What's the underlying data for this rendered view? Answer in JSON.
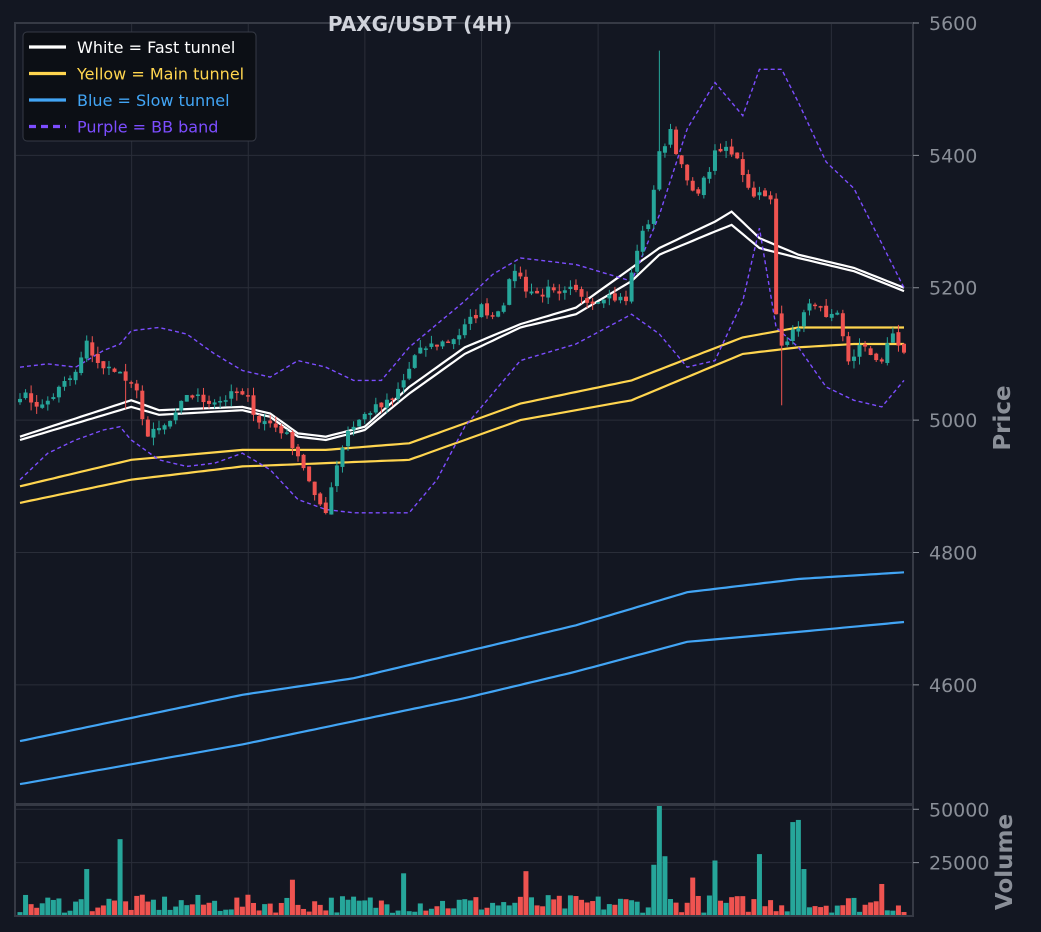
{
  "chart_data": [
    {
      "type": "candlestick",
      "title": "PAXG/USDT (4H)",
      "ylabel": "Price",
      "ylim": [
        4420,
        5600
      ],
      "yticks": [
        "4600",
        "4800",
        "5000",
        "5200",
        "5400",
        "5600"
      ],
      "grid": true,
      "legend_position": "top-left",
      "legend": [
        {
          "label": "White = Fast tunnel",
          "color": "#ffffff",
          "style": "solid"
        },
        {
          "label": "Yellow = Main tunnel",
          "color": "#ffd54f",
          "style": "solid"
        },
        {
          "label": "Blue = Slow tunnel",
          "color": "#42a5f5",
          "style": "solid"
        },
        {
          "label": "Purple = BB band",
          "color": "#7c4dff",
          "style": "dashed"
        }
      ],
      "candle_colors": {
        "up": "#26a69a",
        "down": "#ef5350"
      },
      "close_anchors": [
        [
          0,
          5040
        ],
        [
          4,
          5020
        ],
        [
          8,
          5055
        ],
        [
          10,
          5070
        ],
        [
          12,
          5115
        ],
        [
          15,
          5075
        ],
        [
          17,
          5080
        ],
        [
          19,
          5060
        ],
        [
          21,
          5040
        ],
        [
          23,
          4975
        ],
        [
          26,
          4990
        ],
        [
          28,
          5005
        ],
        [
          30,
          5040
        ],
        [
          33,
          5030
        ],
        [
          36,
          5030
        ],
        [
          39,
          5040
        ],
        [
          41,
          5030
        ],
        [
          43,
          5000
        ],
        [
          45,
          4995
        ],
        [
          47,
          4985
        ],
        [
          49,
          4965
        ],
        [
          51,
          4930
        ],
        [
          53,
          4880
        ],
        [
          55,
          4865
        ],
        [
          57,
          4935
        ],
        [
          59,
          4985
        ],
        [
          61,
          5000
        ],
        [
          63,
          5015
        ],
        [
          65,
          5020
        ],
        [
          67,
          5030
        ],
        [
          69,
          5060
        ],
        [
          71,
          5095
        ],
        [
          73,
          5110
        ],
        [
          75,
          5115
        ],
        [
          77,
          5120
        ],
        [
          79,
          5130
        ],
        [
          81,
          5150
        ],
        [
          83,
          5170
        ],
        [
          85,
          5160
        ],
        [
          87,
          5180
        ],
        [
          89,
          5230
        ],
        [
          91,
          5200
        ],
        [
          93,
          5190
        ],
        [
          95,
          5195
        ],
        [
          97,
          5185
        ],
        [
          99,
          5195
        ],
        [
          101,
          5190
        ],
        [
          103,
          5180
        ],
        [
          105,
          5190
        ],
        [
          107,
          5185
        ],
        [
          109,
          5180
        ],
        [
          111,
          5260
        ],
        [
          113,
          5300
        ],
        [
          115,
          5400
        ],
        [
          117,
          5440
        ],
        [
          119,
          5380
        ],
        [
          121,
          5340
        ],
        [
          123,
          5360
        ],
        [
          125,
          5400
        ],
        [
          127,
          5410
        ],
        [
          129,
          5400
        ],
        [
          131,
          5350
        ],
        [
          133,
          5340
        ],
        [
          135,
          5330
        ],
        [
          136,
          5160
        ],
        [
          137,
          5120
        ],
        [
          139,
          5130
        ],
        [
          141,
          5160
        ],
        [
          143,
          5180
        ],
        [
          145,
          5150
        ],
        [
          147,
          5155
        ],
        [
          149,
          5090
        ],
        [
          151,
          5110
        ],
        [
          153,
          5100
        ],
        [
          155,
          5090
        ],
        [
          157,
          5130
        ],
        [
          159,
          5100
        ]
      ],
      "series": [
        {
          "name": "Fast tunnel upper",
          "color": "#ffffff",
          "points": [
            [
              0,
              4975
            ],
            [
              20,
              5030
            ],
            [
              25,
              5015
            ],
            [
              40,
              5020
            ],
            [
              45,
              5010
            ],
            [
              50,
              4980
            ],
            [
              55,
              4975
            ],
            [
              62,
              4990
            ],
            [
              70,
              5050
            ],
            [
              80,
              5110
            ],
            [
              90,
              5145
            ],
            [
              100,
              5170
            ],
            [
              110,
              5230
            ],
            [
              115,
              5260
            ],
            [
              125,
              5300
            ],
            [
              128,
              5315
            ],
            [
              133,
              5275
            ],
            [
              140,
              5250
            ],
            [
              150,
              5230
            ],
            [
              159,
              5200
            ]
          ]
        },
        {
          "name": "Fast tunnel lower",
          "color": "#ffffff",
          "points": [
            [
              0,
              4970
            ],
            [
              20,
              5020
            ],
            [
              25,
              5008
            ],
            [
              40,
              5015
            ],
            [
              45,
              5005
            ],
            [
              50,
              4975
            ],
            [
              55,
              4970
            ],
            [
              62,
              4985
            ],
            [
              70,
              5040
            ],
            [
              80,
              5100
            ],
            [
              90,
              5140
            ],
            [
              100,
              5160
            ],
            [
              110,
              5210
            ],
            [
              115,
              5250
            ],
            [
              125,
              5285
            ],
            [
              128,
              5295
            ],
            [
              133,
              5260
            ],
            [
              140,
              5245
            ],
            [
              150,
              5225
            ],
            [
              159,
              5195
            ]
          ]
        },
        {
          "name": "Main tunnel upper",
          "color": "#ffd54f",
          "points": [
            [
              0,
              4900
            ],
            [
              20,
              4940
            ],
            [
              40,
              4955
            ],
            [
              55,
              4955
            ],
            [
              70,
              4965
            ],
            [
              80,
              4995
            ],
            [
              90,
              5025
            ],
            [
              110,
              5060
            ],
            [
              130,
              5125
            ],
            [
              140,
              5140
            ],
            [
              150,
              5140
            ],
            [
              159,
              5140
            ]
          ]
        },
        {
          "name": "Main tunnel lower",
          "color": "#ffd54f",
          "points": [
            [
              0,
              4875
            ],
            [
              20,
              4910
            ],
            [
              40,
              4930
            ],
            [
              55,
              4935
            ],
            [
              70,
              4940
            ],
            [
              80,
              4970
            ],
            [
              90,
              5000
            ],
            [
              110,
              5030
            ],
            [
              130,
              5100
            ],
            [
              140,
              5110
            ],
            [
              150,
              5115
            ],
            [
              159,
              5115
            ]
          ]
        },
        {
          "name": "Slow tunnel upper",
          "color": "#42a5f5",
          "points": [
            [
              0,
              4515
            ],
            [
              20,
              4550
            ],
            [
              40,
              4585
            ],
            [
              60,
              4610
            ],
            [
              80,
              4650
            ],
            [
              100,
              4690
            ],
            [
              120,
              4740
            ],
            [
              140,
              4760
            ],
            [
              159,
              4770
            ]
          ]
        },
        {
          "name": "Slow tunnel lower",
          "color": "#42a5f5",
          "points": [
            [
              0,
              4450
            ],
            [
              20,
              4480
            ],
            [
              40,
              4510
            ],
            [
              60,
              4545
            ],
            [
              80,
              4580
            ],
            [
              100,
              4620
            ],
            [
              120,
              4665
            ],
            [
              140,
              4680
            ],
            [
              159,
              4695
            ]
          ]
        },
        {
          "name": "BB band upper",
          "color": "#7c4dff",
          "points": [
            [
              0,
              5080
            ],
            [
              5,
              5085
            ],
            [
              10,
              5080
            ],
            [
              15,
              5105
            ],
            [
              18,
              5115
            ],
            [
              20,
              5135
            ],
            [
              25,
              5140
            ],
            [
              30,
              5130
            ],
            [
              35,
              5100
            ],
            [
              40,
              5075
            ],
            [
              45,
              5065
            ],
            [
              50,
              5090
            ],
            [
              55,
              5080
            ],
            [
              60,
              5060
            ],
            [
              65,
              5060
            ],
            [
              70,
              5110
            ],
            [
              80,
              5180
            ],
            [
              85,
              5220
            ],
            [
              90,
              5245
            ],
            [
              100,
              5235
            ],
            [
              110,
              5210
            ],
            [
              115,
              5310
            ],
            [
              120,
              5440
            ],
            [
              125,
              5510
            ],
            [
              128,
              5480
            ],
            [
              130,
              5460
            ],
            [
              133,
              5530
            ],
            [
              137,
              5530
            ],
            [
              140,
              5480
            ],
            [
              145,
              5390
            ],
            [
              150,
              5350
            ],
            [
              159,
              5200
            ]
          ]
        },
        {
          "name": "BB band lower",
          "color": "#7c4dff",
          "points": [
            [
              0,
              4910
            ],
            [
              5,
              4950
            ],
            [
              10,
              4970
            ],
            [
              15,
              4985
            ],
            [
              18,
              4990
            ],
            [
              20,
              4970
            ],
            [
              25,
              4940
            ],
            [
              30,
              4930
            ],
            [
              35,
              4935
            ],
            [
              40,
              4950
            ],
            [
              45,
              4925
            ],
            [
              50,
              4880
            ],
            [
              55,
              4865
            ],
            [
              60,
              4860
            ],
            [
              65,
              4860
            ],
            [
              70,
              4860
            ],
            [
              75,
              4910
            ],
            [
              80,
              4990
            ],
            [
              85,
              5040
            ],
            [
              90,
              5090
            ],
            [
              100,
              5115
            ],
            [
              110,
              5160
            ],
            [
              115,
              5130
            ],
            [
              120,
              5080
            ],
            [
              125,
              5090
            ],
            [
              130,
              5180
            ],
            [
              133,
              5290
            ],
            [
              136,
              5140
            ],
            [
              140,
              5110
            ],
            [
              145,
              5050
            ],
            [
              150,
              5030
            ],
            [
              155,
              5020
            ],
            [
              159,
              5060
            ]
          ]
        }
      ]
    },
    {
      "type": "bar",
      "ylabel": "Volume",
      "ylim": [
        0,
        52000
      ],
      "yticks": [
        "25000",
        "50000"
      ],
      "grid": true,
      "spikes": [
        {
          "i": 18,
          "v": 36000
        },
        {
          "i": 12,
          "v": 22000
        },
        {
          "i": 49,
          "v": 17000
        },
        {
          "i": 69,
          "v": 20000
        },
        {
          "i": 91,
          "v": 21000
        },
        {
          "i": 114,
          "v": 24000
        },
        {
          "i": 115,
          "v": 52000
        },
        {
          "i": 116,
          "v": 28000
        },
        {
          "i": 125,
          "v": 26000
        },
        {
          "i": 133,
          "v": 29000
        },
        {
          "i": 139,
          "v": 44000
        },
        {
          "i": 140,
          "v": 45000
        },
        {
          "i": 141,
          "v": 22000
        },
        {
          "i": 121,
          "v": 18000
        },
        {
          "i": 155,
          "v": 15000
        }
      ]
    }
  ]
}
